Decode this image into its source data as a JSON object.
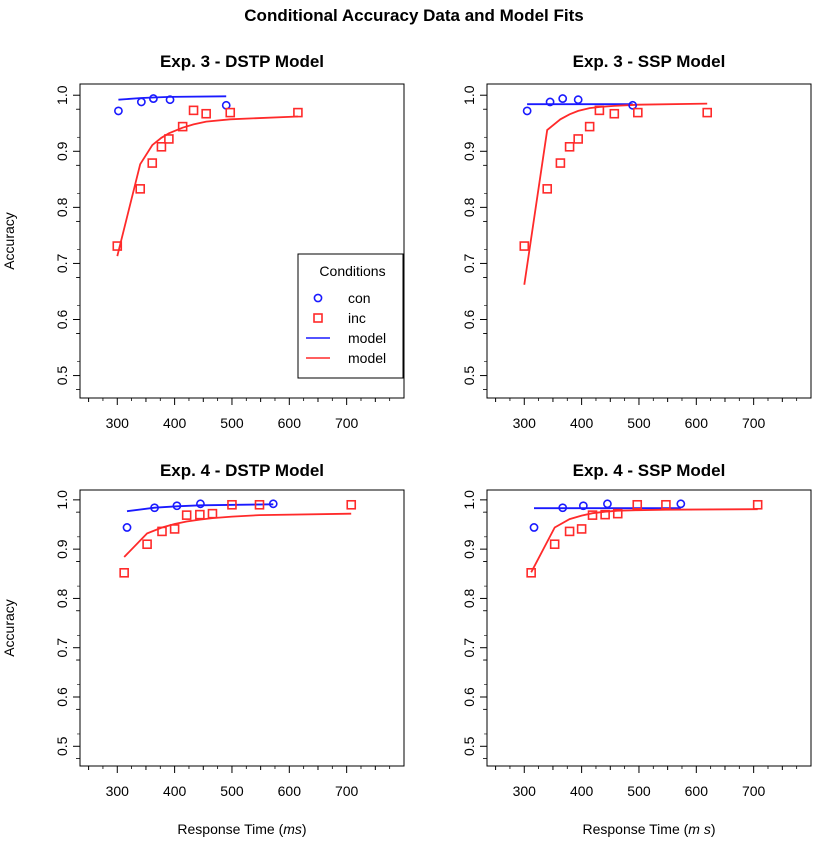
{
  "figure_title": "Conditional Accuracy Data and Model Fits",
  "colors": {
    "con": "#1a1aff",
    "inc": "#ff2a2a",
    "frame": "#000000"
  },
  "legend": {
    "title": "Conditions",
    "entries": [
      {
        "label": "con",
        "symbol": "circle",
        "color": "#1a1aff"
      },
      {
        "label": "inc",
        "symbol": "square",
        "color": "#ff2a2a"
      },
      {
        "label": "model",
        "symbol": "line",
        "color": "#1a1aff"
      },
      {
        "label": "model",
        "symbol": "line",
        "color": "#ff2a2a"
      }
    ]
  },
  "chart_data": [
    {
      "type": "scatter",
      "title": "Exp. 3 - DSTP Model",
      "xlabel": "",
      "xlabel_parts": [],
      "ylabel": "Accuracy",
      "xlim": [
        235,
        800
      ],
      "ylim": [
        0.46,
        1.02
      ],
      "xticks": [
        "300",
        "400",
        "500",
        "600",
        "700"
      ],
      "yticks": [
        "0.5",
        "0.6",
        "0.7",
        "0.8",
        "0.9",
        "1.0"
      ],
      "series": [
        {
          "name": "con",
          "kind": "points",
          "shape": "circle",
          "color": "#1a1aff",
          "x": [
            302,
            342,
            363,
            392,
            490
          ],
          "y": [
            0.972,
            0.988,
            0.994,
            0.992,
            0.982
          ]
        },
        {
          "name": "inc",
          "kind": "points",
          "shape": "square",
          "color": "#ff2a2a",
          "x": [
            300,
            340,
            361,
            377,
            390,
            414,
            433,
            455,
            497,
            615
          ],
          "y": [
            0.731,
            0.833,
            0.879,
            0.908,
            0.922,
            0.944,
            0.973,
            0.967,
            0.969,
            0.969
          ]
        },
        {
          "name": "model",
          "kind": "line",
          "color": "#1a1aff",
          "x": [
            302,
            342,
            363,
            392,
            490
          ],
          "y": [
            0.992,
            0.995,
            0.996,
            0.997,
            0.998
          ]
        },
        {
          "name": "model",
          "kind": "line",
          "color": "#ff2a2a",
          "x": [
            300,
            340,
            361,
            377,
            390,
            414,
            433,
            455,
            497,
            615
          ],
          "y": [
            0.713,
            0.877,
            0.911,
            0.924,
            0.932,
            0.942,
            0.948,
            0.953,
            0.957,
            0.962
          ]
        }
      ]
    },
    {
      "type": "scatter",
      "title": "Exp. 3 - SSP Model",
      "xlabel": "",
      "xlabel_parts": [],
      "ylabel": "",
      "xlim": [
        235,
        800
      ],
      "ylim": [
        0.46,
        1.02
      ],
      "xticks": [
        "300",
        "400",
        "500",
        "600",
        "700"
      ],
      "yticks": [
        "0.5",
        "0.6",
        "0.7",
        "0.8",
        "0.9",
        "1.0"
      ],
      "series": [
        {
          "name": "con",
          "kind": "points",
          "shape": "circle",
          "color": "#1a1aff",
          "x": [
            305,
            345,
            367,
            394,
            489
          ],
          "y": [
            0.972,
            0.988,
            0.994,
            0.992,
            0.982
          ]
        },
        {
          "name": "inc",
          "kind": "points",
          "shape": "square",
          "color": "#ff2a2a",
          "x": [
            300,
            340,
            363,
            379,
            394,
            414,
            431,
            457,
            498,
            619
          ],
          "y": [
            0.731,
            0.833,
            0.879,
            0.908,
            0.922,
            0.944,
            0.973,
            0.967,
            0.969,
            0.969
          ]
        },
        {
          "name": "model",
          "kind": "line",
          "color": "#1a1aff",
          "x": [
            305,
            345,
            367,
            394,
            489
          ],
          "y": [
            0.984,
            0.984,
            0.984,
            0.984,
            0.984
          ]
        },
        {
          "name": "model",
          "kind": "line",
          "color": "#ff2a2a",
          "x": [
            300,
            340,
            363,
            379,
            394,
            414,
            431,
            457,
            498,
            619
          ],
          "y": [
            0.662,
            0.938,
            0.957,
            0.966,
            0.972,
            0.977,
            0.979,
            0.981,
            0.983,
            0.985
          ]
        }
      ]
    },
    {
      "type": "scatter",
      "title": "Exp. 4 - DSTP Model",
      "xlabel": "Response Time (ms)",
      "xlabel_parts": [
        "Response Time (",
        "ms",
        ")"
      ],
      "ylabel": "Accuracy",
      "xlim": [
        235,
        800
      ],
      "ylim": [
        0.46,
        1.02
      ],
      "xticks": [
        "300",
        "400",
        "500",
        "600",
        "700"
      ],
      "yticks": [
        "0.5",
        "0.6",
        "0.7",
        "0.8",
        "0.9",
        "1.0"
      ],
      "series": [
        {
          "name": "con",
          "kind": "points",
          "shape": "circle",
          "color": "#1a1aff",
          "x": [
            317,
            365,
            404,
            445,
            572
          ],
          "y": [
            0.944,
            0.984,
            0.988,
            0.992,
            0.992
          ]
        },
        {
          "name": "inc",
          "kind": "points",
          "shape": "square",
          "color": "#ff2a2a",
          "x": [
            312,
            352,
            378,
            400,
            421,
            444,
            466,
            500,
            548,
            708
          ],
          "y": [
            0.852,
            0.91,
            0.936,
            0.941,
            0.969,
            0.97,
            0.972,
            0.99,
            0.99,
            0.99
          ]
        },
        {
          "name": "model",
          "kind": "line",
          "color": "#1a1aff",
          "x": [
            317,
            365,
            404,
            445,
            572
          ],
          "y": [
            0.977,
            0.984,
            0.987,
            0.989,
            0.991
          ]
        },
        {
          "name": "model",
          "kind": "line",
          "color": "#ff2a2a",
          "x": [
            312,
            352,
            378,
            400,
            421,
            444,
            466,
            500,
            548,
            708
          ],
          "y": [
            0.884,
            0.932,
            0.944,
            0.951,
            0.956,
            0.96,
            0.963,
            0.966,
            0.969,
            0.972
          ]
        }
      ]
    },
    {
      "type": "scatter",
      "title": "Exp. 4 - SSP Model",
      "xlabel": "Response Time (m s)",
      "xlabel_parts": [
        "Response Time (",
        "m s",
        ")"
      ],
      "ylabel": "",
      "xlim": [
        235,
        800
      ],
      "ylim": [
        0.46,
        1.02
      ],
      "xticks": [
        "300",
        "400",
        "500",
        "600",
        "700"
      ],
      "yticks": [
        "0.5",
        "0.6",
        "0.7",
        "0.8",
        "0.9",
        "1.0"
      ],
      "series": [
        {
          "name": "con",
          "kind": "points",
          "shape": "circle",
          "color": "#1a1aff",
          "x": [
            317,
            367,
            403,
            445,
            573
          ],
          "y": [
            0.944,
            0.984,
            0.988,
            0.992,
            0.992
          ]
        },
        {
          "name": "inc",
          "kind": "points",
          "shape": "square",
          "color": "#ff2a2a",
          "x": [
            312,
            353,
            379,
            400,
            419,
            441,
            463,
            497,
            547,
            707
          ],
          "y": [
            0.852,
            0.91,
            0.936,
            0.941,
            0.969,
            0.97,
            0.972,
            0.99,
            0.99,
            0.99
          ]
        },
        {
          "name": "model",
          "kind": "line",
          "color": "#1a1aff",
          "x": [
            317,
            367,
            403,
            445,
            573
          ],
          "y": [
            0.983,
            0.983,
            0.983,
            0.983,
            0.983
          ]
        },
        {
          "name": "model",
          "kind": "line",
          "color": "#ff2a2a",
          "x": [
            312,
            353,
            379,
            400,
            419,
            441,
            463,
            497,
            547,
            707
          ],
          "y": [
            0.853,
            0.944,
            0.961,
            0.968,
            0.973,
            0.976,
            0.978,
            0.979,
            0.98,
            0.981
          ]
        }
      ]
    }
  ]
}
